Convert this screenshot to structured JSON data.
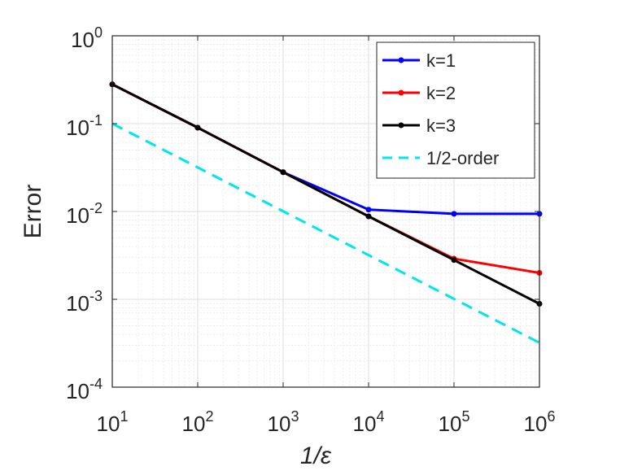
{
  "chart_data": {
    "type": "line",
    "xscale": "log",
    "yscale": "log",
    "xlabel": "1/ε",
    "ylabel": "Error",
    "xlim": [
      10,
      1000000
    ],
    "ylim": [
      0.0001,
      1
    ],
    "x_ticks": [
      {
        "base": "10",
        "exp": "1"
      },
      {
        "base": "10",
        "exp": "2"
      },
      {
        "base": "10",
        "exp": "3"
      },
      {
        "base": "10",
        "exp": "4"
      },
      {
        "base": "10",
        "exp": "5"
      },
      {
        "base": "10",
        "exp": "6"
      }
    ],
    "y_ticks": [
      {
        "base": "10",
        "exp": "-4"
      },
      {
        "base": "10",
        "exp": "-3"
      },
      {
        "base": "10",
        "exp": "-2"
      },
      {
        "base": "10",
        "exp": "-1"
      },
      {
        "base": "10",
        "exp": "0"
      }
    ],
    "grid": true,
    "minor_grid": true,
    "legend_position": "top-right",
    "series": [
      {
        "name": "k=1",
        "color": "#0000FF",
        "style": "solid",
        "markers": true,
        "x": [
          10,
          100,
          1000,
          10000,
          100000,
          1000000
        ],
        "y": [
          0.28,
          0.09,
          0.028,
          0.0105,
          0.0094,
          0.0094
        ]
      },
      {
        "name": "k=2",
        "color": "#FF0000",
        "style": "solid",
        "markers": true,
        "x": [
          10,
          100,
          1000,
          10000,
          100000,
          1000000
        ],
        "y": [
          0.28,
          0.09,
          0.028,
          0.0088,
          0.0029,
          0.002
        ]
      },
      {
        "name": "k=3",
        "color": "#000000",
        "style": "solid",
        "markers": true,
        "x": [
          10,
          100,
          1000,
          10000,
          100000,
          1000000
        ],
        "y": [
          0.28,
          0.09,
          0.028,
          0.0088,
          0.0028,
          0.00089
        ]
      },
      {
        "name": "1/2-order",
        "color": "#00E5EE",
        "style": "dashed",
        "markers": false,
        "x": [
          10,
          1000000
        ],
        "y": [
          0.1,
          0.00032
        ]
      }
    ]
  }
}
